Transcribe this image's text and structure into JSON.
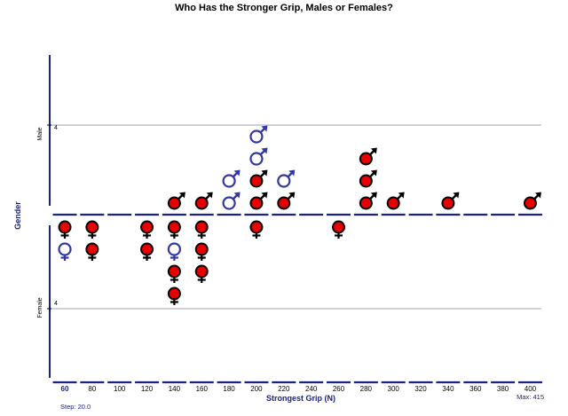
{
  "chart_data": {
    "type": "dot plot (icon stacks by gender)",
    "title": "Who Has the Stronger Grip, Males or Females?",
    "xlabel": "Strongest Grip (N)",
    "ylabel": "Gender",
    "groups": [
      "Male",
      "Female"
    ],
    "group_tick_label": "4",
    "categories": [
      "60",
      "80",
      "100",
      "120",
      "140",
      "160",
      "180",
      "200",
      "220",
      "240",
      "260",
      "280",
      "300",
      "320",
      "340",
      "360",
      "380",
      "400"
    ],
    "step_label": "Step: 20.0",
    "max_label": "Max: 415",
    "series": [
      {
        "name": "Male",
        "counts": [
          0,
          0,
          0,
          0,
          1,
          1,
          2,
          4,
          2,
          0,
          0,
          3,
          1,
          0,
          1,
          0,
          0,
          1
        ]
      },
      {
        "name": "Female",
        "counts": [
          2,
          2,
          0,
          2,
          4,
          3,
          0,
          1,
          0,
          0,
          1,
          0,
          0,
          0,
          0,
          0,
          0,
          0
        ]
      }
    ],
    "icons": [
      {
        "group": "Male",
        "x": "140",
        "stack": [
          "red"
        ]
      },
      {
        "group": "Male",
        "x": "160",
        "stack": [
          "red"
        ]
      },
      {
        "group": "Male",
        "x": "180",
        "stack": [
          "blue",
          "blue"
        ]
      },
      {
        "group": "Male",
        "x": "200",
        "stack": [
          "red",
          "red",
          "blue",
          "blue"
        ]
      },
      {
        "group": "Male",
        "x": "220",
        "stack": [
          "red",
          "blue"
        ]
      },
      {
        "group": "Male",
        "x": "280",
        "stack": [
          "red",
          "red",
          "red"
        ]
      },
      {
        "group": "Male",
        "x": "300",
        "stack": [
          "red"
        ]
      },
      {
        "group": "Male",
        "x": "340",
        "stack": [
          "red"
        ]
      },
      {
        "group": "Male",
        "x": "400",
        "stack": [
          "red"
        ]
      },
      {
        "group": "Female",
        "x": "60",
        "stack": [
          "red",
          "blue"
        ]
      },
      {
        "group": "Female",
        "x": "80",
        "stack": [
          "red",
          "red"
        ]
      },
      {
        "group": "Female",
        "x": "120",
        "stack": [
          "red",
          "red"
        ]
      },
      {
        "group": "Female",
        "x": "140",
        "stack": [
          "red",
          "blue",
          "red",
          "red"
        ]
      },
      {
        "group": "Female",
        "x": "160",
        "stack": [
          "red",
          "red",
          "red"
        ]
      },
      {
        "group": "Female",
        "x": "200",
        "stack": [
          "red"
        ]
      },
      {
        "group": "Female",
        "x": "260",
        "stack": [
          "red"
        ]
      }
    ],
    "colors": {
      "axis": "#1a237e",
      "dot": "#e60000",
      "outline_symbol": "#3338a0",
      "grid": "#9aa3b5"
    }
  }
}
